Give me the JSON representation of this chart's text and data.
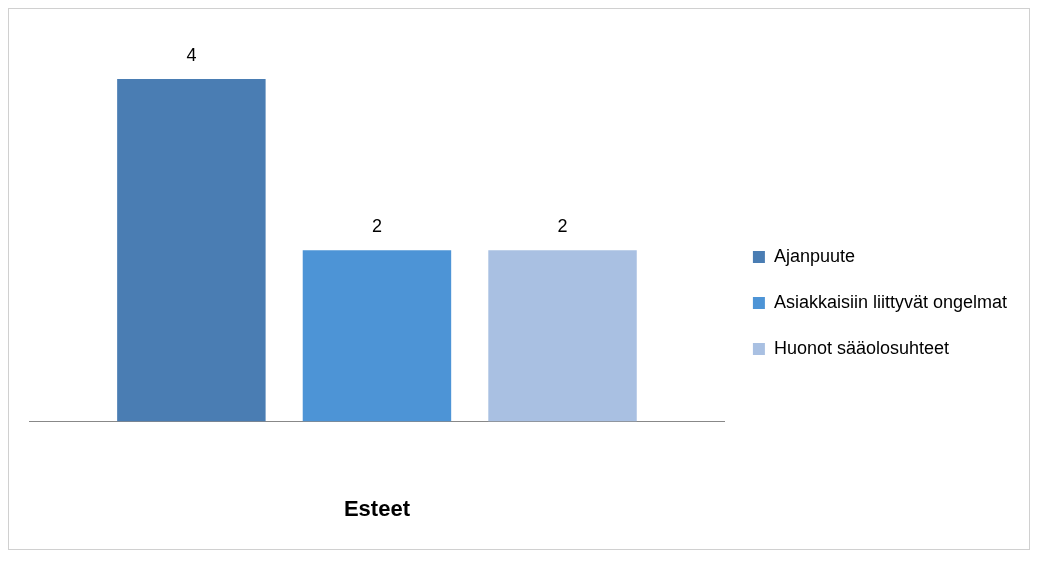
{
  "chart_data": {
    "type": "bar",
    "xlabel": "Esteet",
    "categories": [
      null
    ],
    "series": [
      {
        "name": "Ajanpuute",
        "color": "#4a7db3",
        "values": [
          4
        ]
      },
      {
        "name": "Asiakkaisiin liittyvät ongelmat",
        "color": "#4d94d6",
        "values": [
          2
        ]
      },
      {
        "name": "Huonot sääolosuhteet",
        "color": "#a9c0e2",
        "values": [
          2
        ]
      }
    ],
    "data_labels": true,
    "legend": "right",
    "grid": false
  }
}
